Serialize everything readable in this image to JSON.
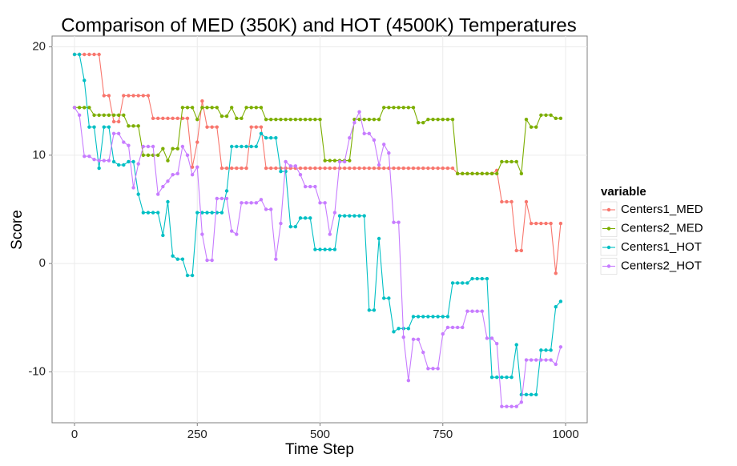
{
  "chart_data": {
    "type": "line",
    "title": "Comparison of MED (350K) and HOT (4500K) Temperatures",
    "x_label": "Time Step",
    "y_label": "Score",
    "legend_title": "variable",
    "legend_position": "right",
    "grid": true,
    "xlim": [
      -45.7,
      1044
    ],
    "ylim": [
      -14.7,
      21.0
    ],
    "xticks": [
      0,
      250,
      500,
      750,
      1000
    ],
    "yticks": [
      -10,
      0,
      10,
      20
    ],
    "x": [
      0,
      10,
      20,
      30,
      40,
      50,
      60,
      70,
      80,
      90,
      100,
      110,
      120,
      130,
      140,
      150,
      160,
      170,
      180,
      190,
      200,
      210,
      220,
      230,
      240,
      250,
      260,
      270,
      280,
      290,
      300,
      310,
      320,
      330,
      340,
      350,
      360,
      370,
      380,
      390,
      400,
      410,
      420,
      430,
      440,
      450,
      460,
      470,
      480,
      490,
      500,
      510,
      520,
      530,
      540,
      550,
      560,
      570,
      580,
      590,
      600,
      610,
      620,
      630,
      640,
      650,
      660,
      670,
      680,
      690,
      700,
      710,
      720,
      730,
      740,
      750,
      760,
      770,
      780,
      790,
      800,
      810,
      820,
      830,
      840,
      850,
      860,
      870,
      880,
      890,
      900,
      910,
      920,
      930,
      940,
      950,
      960,
      970,
      980,
      990
    ],
    "series": [
      {
        "name": "Centers1_MED",
        "color": "#f8766d",
        "values": [
          19.3,
          19.3,
          19.3,
          19.3,
          19.3,
          19.3,
          15.5,
          15.5,
          13.1,
          13.1,
          15.5,
          15.5,
          15.5,
          15.5,
          15.5,
          15.5,
          13.4,
          13.4,
          13.4,
          13.4,
          13.4,
          13.4,
          13.4,
          13.4,
          8.9,
          11.2,
          15.0,
          12.6,
          12.6,
          12.6,
          8.8,
          8.8,
          8.8,
          8.8,
          8.8,
          8.8,
          12.6,
          12.6,
          12.6,
          8.8,
          8.8,
          8.8,
          8.8,
          8.8,
          8.8,
          8.8,
          8.8,
          8.8,
          8.8,
          8.8,
          8.8,
          8.8,
          8.8,
          8.8,
          8.8,
          8.8,
          8.8,
          8.8,
          8.8,
          8.8,
          8.8,
          8.8,
          8.8,
          8.8,
          8.8,
          8.8,
          8.8,
          8.8,
          8.8,
          8.8,
          8.8,
          8.8,
          8.8,
          8.8,
          8.8,
          8.8,
          8.8,
          8.8,
          8.3,
          8.3,
          8.3,
          8.3,
          8.3,
          8.3,
          8.3,
          8.3,
          8.6,
          5.7,
          5.7,
          5.7,
          1.2,
          1.2,
          5.7,
          3.7,
          3.7,
          3.7,
          3.7,
          3.7,
          -0.9,
          3.7
        ]
      },
      {
        "name": "Centers2_MED",
        "color": "#7cae00",
        "values": [
          14.4,
          14.4,
          14.4,
          14.4,
          13.7,
          13.7,
          13.7,
          13.7,
          13.7,
          13.7,
          13.7,
          12.7,
          12.7,
          12.7,
          10.0,
          10.0,
          10.0,
          10.0,
          10.6,
          9.5,
          10.6,
          10.6,
          14.4,
          14.4,
          14.4,
          13.3,
          14.4,
          14.4,
          14.4,
          14.4,
          13.6,
          13.6,
          14.4,
          13.4,
          13.4,
          14.4,
          14.4,
          14.4,
          14.4,
          13.3,
          13.3,
          13.3,
          13.3,
          13.3,
          13.3,
          13.3,
          13.3,
          13.3,
          13.3,
          13.3,
          13.3,
          9.5,
          9.5,
          9.5,
          9.5,
          9.5,
          9.5,
          13.3,
          13.3,
          13.3,
          13.3,
          13.3,
          13.3,
          14.4,
          14.4,
          14.4,
          14.4,
          14.4,
          14.4,
          14.4,
          13.0,
          13.0,
          13.3,
          13.3,
          13.3,
          13.3,
          13.3,
          13.3,
          8.3,
          8.3,
          8.3,
          8.3,
          8.3,
          8.3,
          8.3,
          8.3,
          8.3,
          9.4,
          9.4,
          9.4,
          9.4,
          8.3,
          13.3,
          12.6,
          12.6,
          13.7,
          13.7,
          13.7,
          13.4,
          13.4
        ]
      },
      {
        "name": "Centers1_HOT",
        "color": "#00bfc4",
        "values": [
          19.3,
          19.3,
          16.9,
          12.6,
          12.6,
          8.8,
          12.6,
          12.6,
          9.4,
          9.1,
          9.1,
          9.4,
          9.4,
          6.4,
          4.7,
          4.7,
          4.7,
          4.7,
          2.6,
          5.7,
          0.7,
          0.4,
          0.4,
          -1.1,
          -1.1,
          4.7,
          4.7,
          4.7,
          4.7,
          4.7,
          4.7,
          6.7,
          10.8,
          10.8,
          10.8,
          10.8,
          10.8,
          10.8,
          12.0,
          11.6,
          11.6,
          11.6,
          8.5,
          8.5,
          3.4,
          3.4,
          4.2,
          4.2,
          4.2,
          1.3,
          1.3,
          1.3,
          1.3,
          1.3,
          4.4,
          4.4,
          4.4,
          4.4,
          4.4,
          4.4,
          -4.3,
          -4.3,
          2.3,
          -3.2,
          -3.2,
          -6.3,
          -6.0,
          -6.0,
          -6.0,
          -4.9,
          -4.9,
          -4.9,
          -4.9,
          -4.9,
          -4.9,
          -4.9,
          -4.9,
          -1.8,
          -1.8,
          -1.8,
          -1.8,
          -1.4,
          -1.4,
          -1.4,
          -1.4,
          -10.5,
          -10.5,
          -10.5,
          -10.5,
          -10.5,
          -7.5,
          -12.1,
          -12.1,
          -12.1,
          -12.1,
          -8.0,
          -8.0,
          -8.0,
          -4.0,
          -3.5
        ]
      },
      {
        "name": "Centers2_HOT",
        "color": "#c77cff",
        "values": [
          14.4,
          13.7,
          9.9,
          9.9,
          9.6,
          9.5,
          9.5,
          9.5,
          12.0,
          12.0,
          11.2,
          10.9,
          7.0,
          9.2,
          10.8,
          10.8,
          10.8,
          6.4,
          7.1,
          7.6,
          8.2,
          8.3,
          10.8,
          10.0,
          8.2,
          8.9,
          2.7,
          0.3,
          0.3,
          6.0,
          6.0,
          6.0,
          3.0,
          2.7,
          5.6,
          5.6,
          5.6,
          5.6,
          5.9,
          5.0,
          5.0,
          0.4,
          3.7,
          9.4,
          9.0,
          9.0,
          8.2,
          7.1,
          7.1,
          7.1,
          5.6,
          5.6,
          2.7,
          4.7,
          9.4,
          9.4,
          11.6,
          13.0,
          14.0,
          12.0,
          12.0,
          11.4,
          9.1,
          11.0,
          10.2,
          3.8,
          3.8,
          -6.8,
          -10.8,
          -7.0,
          -7.0,
          -8.2,
          -9.7,
          -9.7,
          -9.7,
          -6.5,
          -5.9,
          -5.9,
          -5.9,
          -5.9,
          -4.4,
          -4.4,
          -4.4,
          -4.4,
          -6.9,
          -6.9,
          -7.4,
          -13.2,
          -13.2,
          -13.2,
          -13.2,
          -12.8,
          -8.9,
          -8.9,
          -8.9,
          -8.9,
          -8.9,
          -8.9,
          -9.3,
          -7.7
        ]
      }
    ]
  }
}
